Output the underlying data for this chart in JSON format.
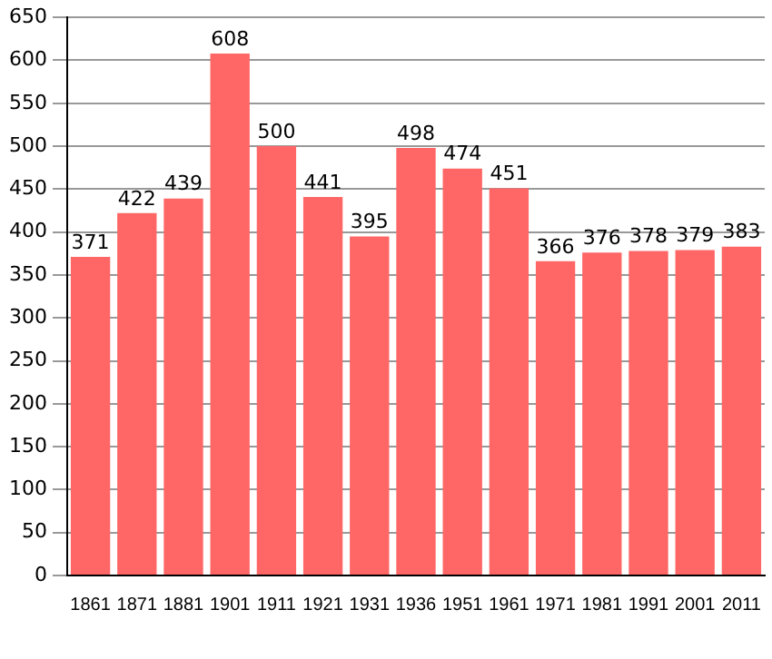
{
  "chart_data": {
    "type": "bar",
    "categories": [
      "1861",
      "1871",
      "1881",
      "1901",
      "1911",
      "1921",
      "1931",
      "1936",
      "1951",
      "1961",
      "1971",
      "1981",
      "1991",
      "2001",
      "2011"
    ],
    "values": [
      371,
      422,
      439,
      608,
      500,
      441,
      395,
      498,
      474,
      451,
      366,
      376,
      378,
      379,
      383
    ],
    "color": "#ff6666",
    "ylim": [
      0,
      650
    ],
    "yticks": [
      0,
      50,
      100,
      150,
      200,
      250,
      300,
      350,
      400,
      450,
      500,
      550,
      600,
      650
    ],
    "grid": "y",
    "data_labels": true
  }
}
